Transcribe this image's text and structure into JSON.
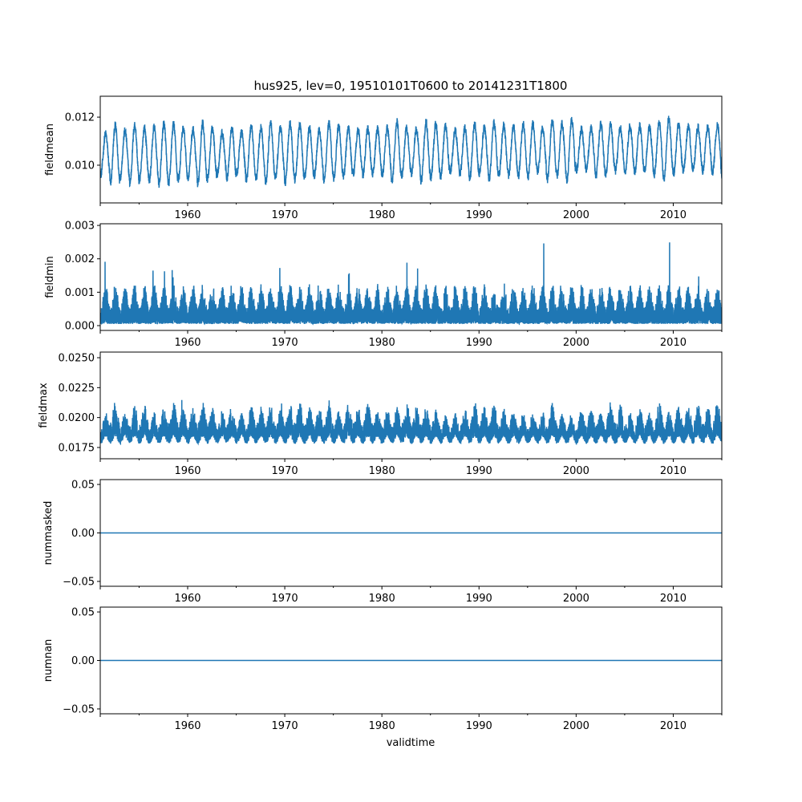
{
  "chart_data": {
    "type": "line",
    "title": "hus925, lev=0, 19510101T0600 to 20141231T1800",
    "xlabel": "validtime",
    "xlim": [
      1951.0,
      2015.0
    ],
    "x_ticks": [
      "1960",
      "1970",
      "1980",
      "1990",
      "2000",
      "2010"
    ],
    "x_tick_values": [
      1960,
      1970,
      1980,
      1990,
      2000,
      2010
    ],
    "x_minor_tick_values": [
      1955,
      1965,
      1975,
      1985,
      1995,
      2005,
      2015
    ],
    "line_color": "#1f77b4",
    "panels": [
      {
        "ylabel": "fieldmean",
        "ylim": [
          0.00843,
          0.01287
        ],
        "y_ticks": [
          "0.010",
          "0.012"
        ],
        "y_tick_values": [
          0.01,
          0.012
        ],
        "series": {
          "kind": "seasonal",
          "center": 0.01045,
          "amplitude": 0.00105,
          "noise": 0.00018,
          "trend_per_year": 4e-06,
          "min": 0.0086,
          "max": 0.0127
        }
      },
      {
        "ylabel": "fieldmin",
        "ylim": [
          -0.000144,
          0.00305
        ],
        "y_ticks": [
          "0.000",
          "0.001",
          "0.002",
          "0.003"
        ],
        "y_tick_values": [
          0.0,
          0.001,
          0.002,
          0.003
        ],
        "series": {
          "kind": "dense",
          "base": 5e-05,
          "band": 0.0012,
          "spike": 0.0026,
          "min": 0.0,
          "max": 0.0029
        }
      },
      {
        "ylabel": "fieldmax",
        "ylim": [
          0.01656,
          0.02547
        ],
        "y_ticks": [
          "0.0175",
          "0.0200",
          "0.0225",
          "0.0250"
        ],
        "y_tick_values": [
          0.0175,
          0.02,
          0.0225,
          0.025
        ],
        "series": {
          "kind": "spiky",
          "base": 0.0178,
          "band": 0.0025,
          "spike": 0.0048,
          "min": 0.0171,
          "max": 0.0252
        }
      },
      {
        "ylabel": "nummasked",
        "ylim": [
          -0.055,
          0.055
        ],
        "y_ticks": [
          "−0.05",
          "0.00",
          "0.05"
        ],
        "y_tick_values": [
          -0.05,
          0.0,
          0.05
        ],
        "series": {
          "kind": "constant",
          "value": 0
        }
      },
      {
        "ylabel": "numnan",
        "ylim": [
          -0.055,
          0.055
        ],
        "y_ticks": [
          "−0.05",
          "0.00",
          "0.05"
        ],
        "y_tick_values": [
          -0.05,
          0.0,
          0.05
        ],
        "series": {
          "kind": "constant",
          "value": 0
        }
      }
    ]
  }
}
